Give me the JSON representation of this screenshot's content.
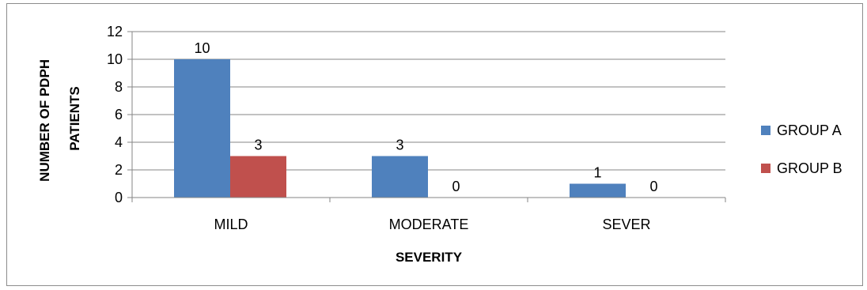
{
  "chart_data": {
    "type": "bar",
    "categories": [
      "MILD",
      "MODERATE",
      "SEVER"
    ],
    "series": [
      {
        "name": "GROUP A",
        "values": [
          10,
          3,
          1
        ],
        "color": "#4f81bd"
      },
      {
        "name": "GROUP B",
        "values": [
          3,
          0,
          0
        ],
        "color": "#c0504d"
      }
    ],
    "xlabel": "SEVERITY",
    "ylabel": [
      "NUMBER OF PDPH",
      "PATIENTS"
    ],
    "ylim": [
      0,
      12
    ],
    "yticks": [
      0,
      2,
      4,
      6,
      8,
      10,
      12
    ],
    "grid": "horizontal",
    "legend_position": "right"
  }
}
